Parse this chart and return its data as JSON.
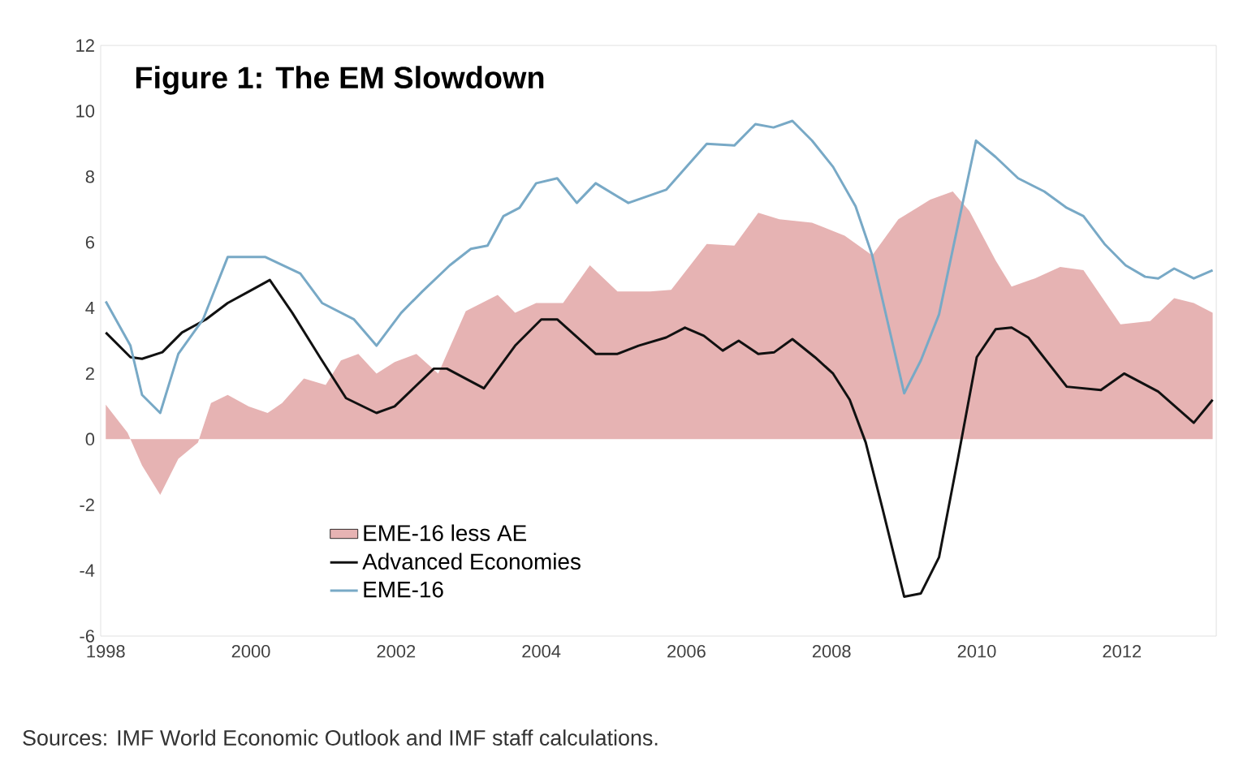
{
  "chart_data": {
    "type": "line",
    "title": "Figure 1: The EM Slowdown",
    "annotations": [
      "Sources: IMF World Economic Outlook and IMF staff calculations."
    ],
    "xlim": [
      1997.93,
      2013.3
    ],
    "xticks": [
      1998,
      2000,
      2002,
      2004,
      2006,
      2008,
      2010,
      2012
    ],
    "ylim": [
      -6,
      12
    ],
    "yticks": [
      -6,
      -4,
      -2,
      0,
      2,
      4,
      6,
      8,
      10,
      12
    ],
    "grid": false,
    "legend": "bottom left",
    "marker": "none",
    "line_style": "solid",
    "series": [
      {
        "name": "EME-16 less AE",
        "type": "area",
        "color": "#e6b3b3",
        "x": [
          1998,
          1998.3,
          1998.5,
          1998.75,
          1999.0,
          1999.27,
          1999.45,
          1999.68,
          1999.97,
          2000.23,
          2000.43,
          2000.73,
          2001.03,
          2001.24,
          2001.48,
          2001.73,
          2001.98,
          2002.28,
          2002.58,
          2002.96,
          2003.4,
          2003.64,
          2003.93,
          2004.3,
          2004.67,
          2005.05,
          2005.5,
          2005.79,
          2006.28,
          2006.66,
          2006.99,
          2007.28,
          2007.73,
          2008.18,
          2008.56,
          2008.92,
          2009.36,
          2009.67,
          2009.9,
          2010.26,
          2010.48,
          2010.8,
          2011.15,
          2011.47,
          2011.98,
          2012.39,
          2012.72,
          2012.99,
          2013.25
        ],
        "values": [
          1.05,
          0.2,
          -0.8,
          -1.7,
          -0.6,
          -0.1,
          1.1,
          1.35,
          1.0,
          0.8,
          1.1,
          1.85,
          1.65,
          2.4,
          2.6,
          2.0,
          2.35,
          2.6,
          2.0,
          3.9,
          4.4,
          3.85,
          4.15,
          4.15,
          5.3,
          4.5,
          4.5,
          4.55,
          5.95,
          5.9,
          6.9,
          6.7,
          6.6,
          6.2,
          5.6,
          6.7,
          7.3,
          7.55,
          6.95,
          5.45,
          4.65,
          4.9,
          5.25,
          5.15,
          3.5,
          3.6,
          4.3,
          4.15,
          3.85
        ]
      },
      {
        "name": "Advanced Economies",
        "color": "#111111",
        "x": [
          1998,
          1998.34,
          1998.5,
          1998.78,
          1999.05,
          1999.38,
          1999.68,
          1999.97,
          2000.26,
          2000.57,
          2000.95,
          2001.31,
          2001.73,
          2001.98,
          2002.52,
          2002.7,
          2003.21,
          2003.64,
          2004.0,
          2004.22,
          2004.75,
          2005.05,
          2005.34,
          2005.72,
          2005.98,
          2006.24,
          2006.5,
          2006.72,
          2006.99,
          2007.21,
          2007.46,
          2007.77,
          2008.02,
          2008.25,
          2008.47,
          2008.7,
          2009.0,
          2009.23,
          2009.48,
          2009.74,
          2010.0,
          2010.26,
          2010.48,
          2010.71,
          2011.24,
          2011.71,
          2012.03,
          2012.5,
          2012.99,
          2013.25
        ],
        "values": [
          3.25,
          2.5,
          2.45,
          2.65,
          3.25,
          3.65,
          4.15,
          4.5,
          4.85,
          3.85,
          2.5,
          1.25,
          0.8,
          1.0,
          2.15,
          2.15,
          1.55,
          2.85,
          3.65,
          3.65,
          2.6,
          2.6,
          2.85,
          3.1,
          3.4,
          3.15,
          2.7,
          3.0,
          2.6,
          2.65,
          3.05,
          2.5,
          2.0,
          1.2,
          -0.1,
          -2.1,
          -4.8,
          -4.7,
          -3.6,
          -0.6,
          2.5,
          3.35,
          3.4,
          3.1,
          1.6,
          1.5,
          2.0,
          1.45,
          0.5,
          1.2
        ]
      },
      {
        "name": "EME-16",
        "color": "#78a9c6",
        "x": [
          1998,
          1998.34,
          1998.5,
          1998.75,
          1999.0,
          1999.34,
          1999.68,
          2000.2,
          2000.68,
          2000.98,
          2001.42,
          2001.73,
          2002.07,
          2002.36,
          2002.74,
          2003.03,
          2003.26,
          2003.48,
          2003.7,
          2003.93,
          2004.22,
          2004.49,
          2004.75,
          2005.2,
          2005.72,
          2006.28,
          2006.66,
          2006.95,
          2007.2,
          2007.46,
          2007.73,
          2008.02,
          2008.33,
          2008.56,
          2008.78,
          2009.0,
          2009.23,
          2009.48,
          2009.7,
          2009.99,
          2010.26,
          2010.57,
          2010.93,
          2011.24,
          2011.47,
          2011.76,
          2012.05,
          2012.32,
          2012.5,
          2012.72,
          2012.99,
          2013.25
        ],
        "values": [
          4.2,
          2.85,
          1.35,
          0.8,
          2.6,
          3.65,
          5.55,
          5.55,
          5.05,
          4.15,
          3.65,
          2.85,
          3.85,
          4.5,
          5.3,
          5.8,
          5.9,
          6.8,
          7.05,
          7.8,
          7.95,
          7.2,
          7.8,
          7.2,
          7.6,
          9.0,
          8.95,
          9.6,
          9.5,
          9.7,
          9.1,
          8.3,
          7.1,
          5.6,
          3.5,
          1.4,
          2.4,
          3.8,
          6.1,
          9.1,
          8.6,
          7.95,
          7.55,
          7.05,
          6.8,
          5.95,
          5.3,
          4.95,
          4.9,
          5.2,
          4.9,
          5.15
        ]
      }
    ]
  }
}
